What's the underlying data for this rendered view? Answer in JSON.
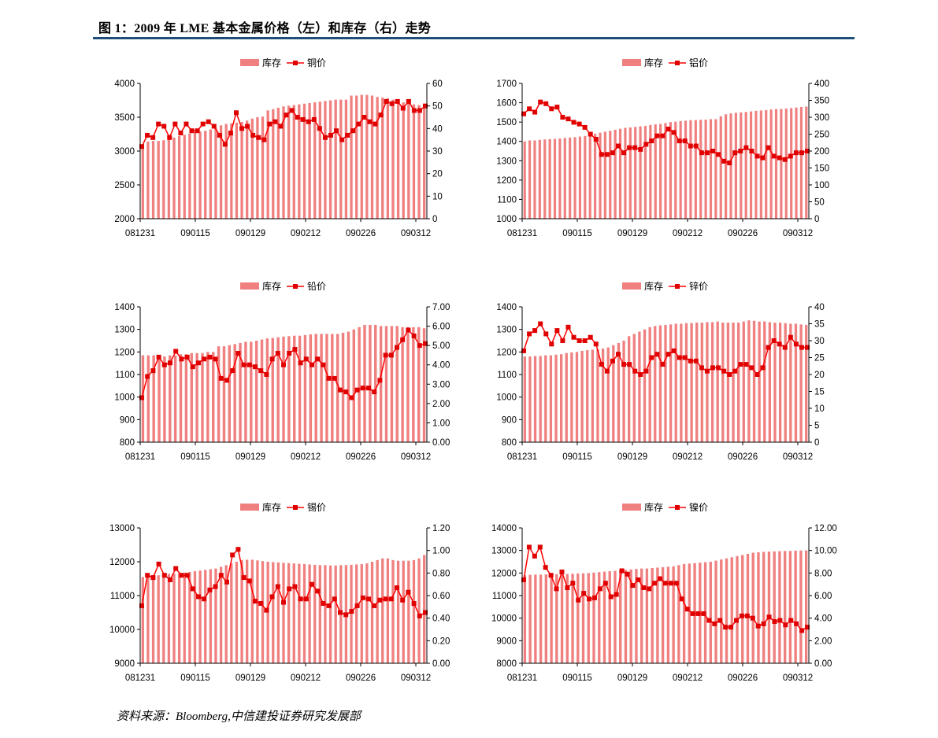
{
  "page": {
    "title": "图 1：2009 年 LME 基本金属价格（左）和库存（右）走势",
    "source": "资料来源：Bloomberg,中信建投证券研究发展部"
  },
  "colors": {
    "bar": "#f08080",
    "line": "#ff0000",
    "marker": "#e00000",
    "title_rule": "#1f4e79"
  },
  "chart_data": [
    {
      "type": "bar+line",
      "legend": [
        "库存",
        "铜价"
      ],
      "x_ticks": [
        "081231",
        "090115",
        "090129",
        "090212",
        "090226",
        "090312"
      ],
      "left_axis": {
        "ticks": [
          "4000",
          "3500",
          "3000",
          "2500",
          "2000"
        ],
        "range": [
          2000,
          4000
        ]
      },
      "right_axis": {
        "ticks": [
          "60",
          "50",
          "40",
          "30",
          "20",
          "10",
          "0"
        ],
        "range": [
          0,
          60
        ]
      },
      "bars": [
        3100,
        3140,
        3150,
        3150,
        3160,
        3170,
        3200,
        3220,
        3240,
        3260,
        3280,
        3290,
        3300,
        3320,
        3340,
        3380,
        3400,
        3410,
        3420,
        3430,
        3450,
        3480,
        3500,
        3510,
        3600,
        3620,
        3640,
        3660,
        3670,
        3680,
        3690,
        3700,
        3710,
        3720,
        3730,
        3740,
        3750,
        3760,
        3760,
        3760,
        3820,
        3820,
        3830,
        3830,
        3820,
        3800,
        3790,
        3780,
        3760,
        3740,
        3720,
        3700,
        3690,
        3680,
        3670
      ],
      "line": [
        32,
        37,
        36,
        42,
        41,
        36,
        42,
        38,
        42,
        39,
        39,
        42,
        43,
        41,
        37,
        33,
        38,
        47,
        40,
        41,
        37,
        36,
        35,
        42,
        43,
        41,
        46,
        48,
        45,
        44,
        43,
        44,
        40,
        36,
        37,
        39,
        35,
        37,
        39,
        42,
        45,
        43,
        42,
        46,
        52,
        51,
        52,
        49,
        52,
        48,
        48,
        50
      ],
      "legend_label_left": "库存",
      "legend_label_right": "铜价"
    },
    {
      "type": "bar+line",
      "legend": [
        "库存",
        "铝价"
      ],
      "x_ticks": [
        "081231",
        "090115",
        "090129",
        "090212",
        "090226",
        "090312"
      ],
      "left_axis": {
        "ticks": [
          "1700",
          "1600",
          "1500",
          "1400",
          "1300",
          "1200",
          "1100",
          "1000"
        ],
        "range": [
          1000,
          1700
        ]
      },
      "right_axis": {
        "ticks": [
          "400",
          "350",
          "300",
          "250",
          "200",
          "150",
          "100",
          "50",
          "0"
        ],
        "range": [
          0,
          400
        ]
      },
      "bars": [
        1400,
        1405,
        1405,
        1408,
        1410,
        1412,
        1413,
        1415,
        1418,
        1420,
        1422,
        1425,
        1428,
        1430,
        1440,
        1445,
        1450,
        1455,
        1460,
        1465,
        1470,
        1472,
        1475,
        1478,
        1480,
        1485,
        1488,
        1490,
        1495,
        1500,
        1502,
        1505,
        1507,
        1510,
        1510,
        1512,
        1512,
        1515,
        1515,
        1530,
        1540,
        1545,
        1548,
        1550,
        1552,
        1555,
        1558,
        1560,
        1562,
        1565,
        1567,
        1568,
        1570,
        1572,
        1575,
        1578,
        1580
      ],
      "line": [
        310,
        325,
        315,
        345,
        340,
        325,
        330,
        300,
        295,
        285,
        280,
        270,
        250,
        235,
        190,
        190,
        195,
        215,
        195,
        210,
        210,
        205,
        220,
        230,
        245,
        245,
        265,
        255,
        230,
        230,
        215,
        215,
        195,
        195,
        200,
        190,
        170,
        165,
        195,
        200,
        210,
        200,
        185,
        180,
        210,
        185,
        180,
        175,
        185,
        195,
        195,
        200
      ],
      "legend_label_left": "库存",
      "legend_label_right": "铝价"
    },
    {
      "type": "bar+line",
      "legend": [
        "库存",
        "铅价"
      ],
      "x_ticks": [
        "081231",
        "090115",
        "090129",
        "090212",
        "090226",
        "090312"
      ],
      "left_axis": {
        "ticks": [
          "1400",
          "1300",
          "1200",
          "1100",
          "1000",
          "900",
          "800"
        ],
        "range": [
          800,
          1400
        ]
      },
      "right_axis": {
        "ticks": [
          "7.00",
          "6.00",
          "5.00",
          "4.00",
          "3.00",
          "2.00",
          "1.00",
          "0.00"
        ],
        "range": [
          0,
          7
        ]
      },
      "bars": [
        1185,
        1185,
        1185,
        1180,
        1180,
        1185,
        1185,
        1190,
        1190,
        1195,
        1195,
        1195,
        1200,
        1200,
        1225,
        1225,
        1230,
        1235,
        1240,
        1245,
        1245,
        1250,
        1255,
        1260,
        1262,
        1265,
        1268,
        1270,
        1272,
        1272,
        1275,
        1278,
        1280,
        1280,
        1280,
        1280,
        1280,
        1285,
        1290,
        1300,
        1310,
        1320,
        1320,
        1320,
        1315,
        1315,
        1315,
        1315,
        1310,
        1310,
        1310,
        1310,
        1305
      ],
      "line": [
        2.3,
        3.4,
        3.7,
        4.4,
        4.0,
        4.1,
        4.7,
        4.3,
        4.4,
        3.9,
        4.1,
        4.3,
        4.4,
        4.3,
        3.3,
        3.2,
        3.7,
        4.6,
        4.0,
        4.0,
        3.9,
        3.7,
        3.5,
        4.3,
        4.6,
        4.0,
        4.6,
        4.8,
        4.1,
        4.3,
        4.0,
        4.3,
        4.0,
        3.3,
        3.3,
        2.7,
        2.6,
        2.3,
        2.7,
        2.8,
        2.8,
        2.6,
        3.2,
        4.5,
        4.5,
        4.9,
        5.3,
        5.8,
        5.5,
        5.0,
        5.1
      ],
      "legend_label_left": "库存",
      "legend_label_right": "铅价"
    },
    {
      "type": "bar+line",
      "legend": [
        "库存",
        "锌价"
      ],
      "x_ticks": [
        "081231",
        "090115",
        "090129",
        "090212",
        "090226",
        "090312"
      ],
      "left_axis": {
        "ticks": [
          "1400",
          "1300",
          "1200",
          "1100",
          "1000",
          "900",
          "800"
        ],
        "range": [
          800,
          1400
        ]
      },
      "right_axis": {
        "ticks": [
          "40",
          "35",
          "30",
          "25",
          "20",
          "15",
          "10",
          "5",
          "0"
        ],
        "range": [
          0,
          40
        ]
      },
      "bars": [
        1180,
        1180,
        1182,
        1182,
        1185,
        1185,
        1188,
        1190,
        1195,
        1198,
        1200,
        1205,
        1208,
        1210,
        1212,
        1215,
        1220,
        1230,
        1240,
        1250,
        1270,
        1280,
        1290,
        1300,
        1310,
        1315,
        1318,
        1320,
        1322,
        1325,
        1325,
        1328,
        1328,
        1330,
        1330,
        1332,
        1332,
        1335,
        1330,
        1330,
        1330,
        1330,
        1335,
        1340,
        1338,
        1335,
        1335,
        1332,
        1330,
        1330,
        1328,
        1325,
        1325,
        1322,
        1320
      ],
      "line": [
        27,
        32,
        33,
        35,
        32,
        29,
        33,
        30,
        34,
        31,
        30,
        30,
        31,
        29,
        23,
        21,
        24,
        26,
        23,
        23,
        21,
        20,
        21,
        25,
        26,
        23,
        26,
        27,
        25,
        25,
        24,
        24,
        22,
        21,
        22,
        22,
        21,
        20,
        21,
        23,
        23,
        22,
        20,
        22,
        28,
        30,
        29,
        28,
        31,
        29,
        28,
        28
      ],
      "legend_label_left": "库存",
      "legend_label_right": "锌价"
    },
    {
      "type": "bar+line",
      "legend": [
        "库存",
        "锡价"
      ],
      "x_ticks": [
        "081231",
        "090115",
        "090129",
        "090212",
        "090226",
        "090312"
      ],
      "left_axis": {
        "ticks": [
          "13000",
          "12000",
          "11000",
          "10000",
          "9000"
        ],
        "range": [
          9000,
          13000
        ]
      },
      "right_axis": {
        "ticks": [
          "1.20",
          "1.00",
          "0.80",
          "0.60",
          "0.40",
          "0.20",
          "0.00"
        ],
        "range": [
          0,
          1.2
        ]
      },
      "bars": [
        11550,
        11580,
        11600,
        11600,
        11620,
        11640,
        11650,
        11660,
        11680,
        11700,
        11720,
        11740,
        11760,
        11780,
        11800,
        11850,
        11900,
        11950,
        12000,
        12050,
        12060,
        12060,
        12040,
        12020,
        12000,
        11990,
        11980,
        11970,
        11960,
        11950,
        11940,
        11930,
        11920,
        11910,
        11900,
        11900,
        11890,
        11890,
        11900,
        11900,
        11910,
        11920,
        11930,
        11950,
        12000,
        12050,
        12100,
        12100,
        12050,
        12030,
        12030,
        12030,
        12050,
        12100,
        12200
      ],
      "line": [
        0.51,
        0.78,
        0.76,
        0.88,
        0.78,
        0.74,
        0.84,
        0.78,
        0.78,
        0.66,
        0.59,
        0.57,
        0.65,
        0.68,
        0.78,
        0.72,
        0.96,
        1.01,
        0.76,
        0.73,
        0.55,
        0.53,
        0.47,
        0.59,
        0.68,
        0.54,
        0.66,
        0.68,
        0.57,
        0.57,
        0.7,
        0.64,
        0.53,
        0.51,
        0.57,
        0.45,
        0.43,
        0.46,
        0.51,
        0.58,
        0.57,
        0.51,
        0.56,
        0.57,
        0.57,
        0.67,
        0.56,
        0.63,
        0.53,
        0.42,
        0.45
      ],
      "legend_label_left": "库存",
      "legend_label_right": "锡价"
    },
    {
      "type": "bar+line",
      "legend": [
        "库存",
        "镍价"
      ],
      "x_ticks": [
        "081231",
        "090115",
        "090129",
        "090212",
        "090226",
        "090312"
      ],
      "left_axis": {
        "ticks": [
          "14000",
          "13000",
          "12000",
          "11000",
          "10000",
          "9000",
          "8000"
        ],
        "range": [
          8000,
          14000
        ]
      },
      "right_axis": {
        "ticks": [
          "12.00",
          "10.00",
          "8.00",
          "6.00",
          "4.00",
          "2.00",
          "0.00"
        ],
        "range": [
          0,
          12
        ]
      },
      "bars": [
        11900,
        11920,
        11930,
        11930,
        11940,
        11940,
        11950,
        11950,
        11960,
        11970,
        11980,
        11990,
        12000,
        12020,
        12040,
        12060,
        12080,
        12100,
        12120,
        12140,
        12160,
        12180,
        12200,
        12200,
        12220,
        12240,
        12260,
        12280,
        12300,
        12350,
        12400,
        12420,
        12440,
        12460,
        12480,
        12500,
        12550,
        12600,
        12650,
        12700,
        12750,
        12800,
        12850,
        12900,
        12920,
        12940,
        12950,
        12960,
        12970,
        12980,
        12980,
        12990,
        13000,
        13000
      ],
      "line": [
        7.4,
        10.3,
        9.5,
        10.3,
        8.5,
        7.8,
        6.6,
        8.1,
        6.7,
        7.1,
        5.6,
        6.2,
        5.7,
        5.8,
        6.6,
        7.1,
        5.9,
        6.1,
        8.2,
        7.9,
        6.9,
        7.4,
        6.7,
        6.6,
        7.1,
        7.5,
        7.1,
        7.1,
        7.1,
        5.7,
        4.8,
        4.4,
        4.4,
        4.4,
        3.8,
        3.5,
        3.8,
        3.2,
        3.2,
        3.8,
        4.2,
        4.2,
        4.0,
        3.3,
        3.5,
        4.1,
        3.7,
        3.8,
        3.4,
        3.8,
        3.5,
        2.9,
        3.2
      ],
      "legend_label_left": "库存",
      "legend_label_right": "镍价"
    }
  ]
}
